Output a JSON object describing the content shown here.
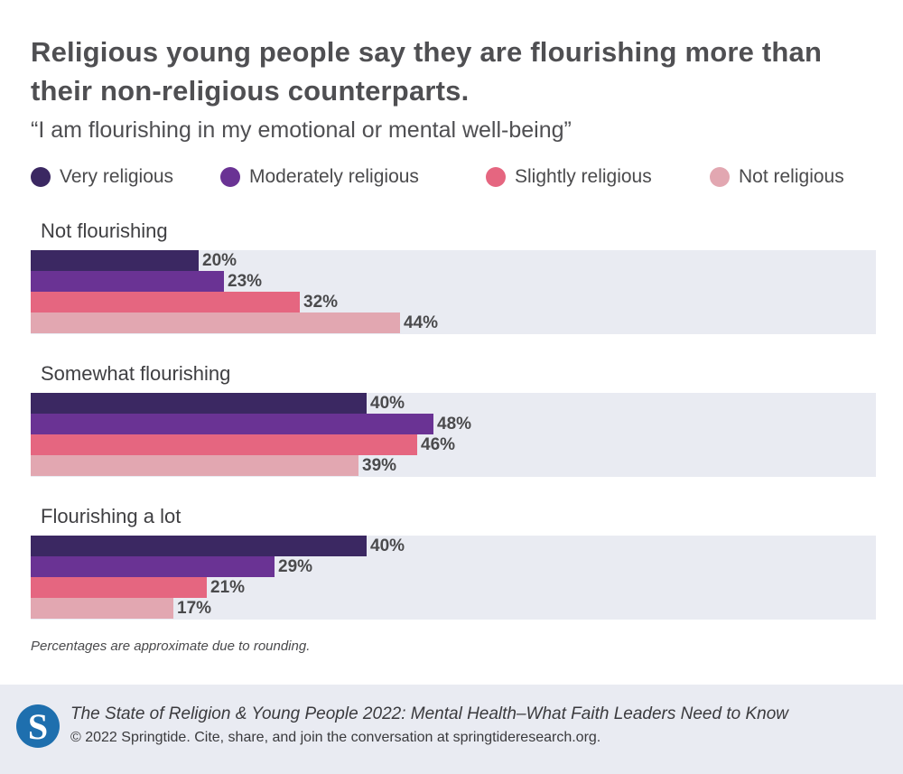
{
  "colors": {
    "very": "#3b2862",
    "moderately": "#6a3394",
    "slightly": "#e56680",
    "not": "#e2a7b1",
    "band": "#e9ebf2"
  },
  "chart_data": {
    "type": "bar",
    "orientation": "horizontal",
    "title": "Religious young people say they are flourishing more than their non-religious counterparts.",
    "subtitle": "“I am flourishing in my emotional or mental well-being”",
    "xlim": [
      0,
      100
    ],
    "value_suffix": "%",
    "legend_position": "top",
    "series_names": [
      "Very religious",
      "Moderately religious",
      "Slightly religious",
      "Not religious"
    ],
    "groups": [
      {
        "label": "Not flourishing",
        "values": [
          20,
          23,
          32,
          44
        ],
        "labels": [
          "20%",
          "23%",
          "32%",
          "44%"
        ]
      },
      {
        "label": "Somewhat flourishing",
        "values": [
          40,
          48,
          46,
          39
        ],
        "labels": [
          "40%",
          "48%",
          "46%",
          "39%"
        ]
      },
      {
        "label": "Flourishing a lot",
        "values": [
          40,
          29,
          21,
          17
        ],
        "labels": [
          "40%",
          "29%",
          "21%",
          "17%"
        ]
      }
    ],
    "note": "Percentages are approximate due to rounding."
  },
  "footer": {
    "logo_letter": "S",
    "title": "The State of Religion & Young People 2022: Mental Health–What Faith Leaders Need to Know",
    "credit": "© 2022 Springtide. Cite, share, and join the conversation at springtideresearch.org."
  }
}
